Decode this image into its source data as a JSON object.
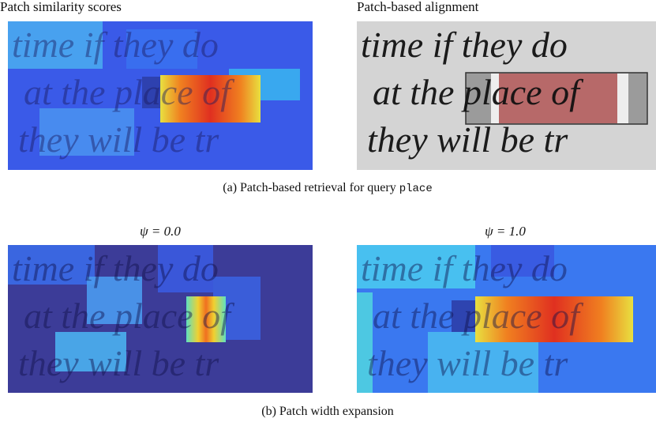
{
  "panels": [
    {
      "title": "Patch similarity scores"
    },
    {
      "title": "Patch-based alignment"
    },
    {
      "title": "ψ = 0.0"
    },
    {
      "title": "ψ = 1.0"
    }
  ],
  "handwriting": [
    "time if they do",
    "at the place of",
    ", they will be tr"
  ],
  "captions": [
    {
      "text": "(a) Patch-based retrieval for query",
      "query": "place"
    },
    {
      "text": "(b) Patch width expansion"
    }
  ]
}
